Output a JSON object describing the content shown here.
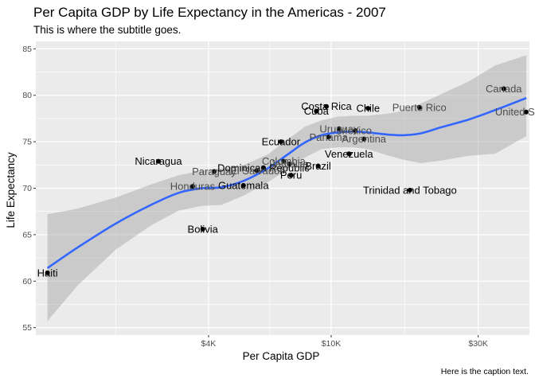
{
  "chart_data": {
    "type": "scatter",
    "title": "Per Capita GDP by Life Expectancy in the Americas - 2007",
    "subtitle": "This is where the subtitle goes.",
    "caption": "Here is the caption text.",
    "xlabel": "Per Capita GDP",
    "ylabel": "Life Expectancy",
    "x_scale": "log10",
    "xlim": [
      1100,
      44000
    ],
    "ylim": [
      54.2,
      85.8
    ],
    "x_ticks": [
      {
        "value": 4000,
        "label": "$4K"
      },
      {
        "value": 10000,
        "label": "$10K"
      },
      {
        "value": 30000,
        "label": "$30K"
      }
    ],
    "x_minor_ticks": [
      2000,
      6325,
      17320
    ],
    "y_ticks": [
      55,
      60,
      65,
      70,
      75,
      80,
      85
    ],
    "grid": true,
    "smooth_color": "#3366ff",
    "points": [
      {
        "country": "Haiti",
        "x": 1200,
        "y": 60.9
      },
      {
        "country": "Nicaragua",
        "x": 2750,
        "y": 72.9
      },
      {
        "country": "Honduras",
        "x": 3550,
        "y": 70.2
      },
      {
        "country": "Bolivia",
        "x": 3830,
        "y": 65.6
      },
      {
        "country": "Paraguay",
        "x": 4170,
        "y": 71.8
      },
      {
        "country": "Guatemala",
        "x": 5190,
        "y": 70.3
      },
      {
        "country": "Dominican Republic",
        "x": 6030,
        "y": 72.2
      },
      {
        "country": "El Salvador",
        "x": 5730,
        "y": 71.9
      },
      {
        "country": "Ecuador",
        "x": 6870,
        "y": 75.0
      },
      {
        "country": "Colombia",
        "x": 7010,
        "y": 72.9
      },
      {
        "country": "Jamaica",
        "x": 7320,
        "y": 72.6
      },
      {
        "country": "Peru",
        "x": 7410,
        "y": 71.4
      },
      {
        "country": "Cuba",
        "x": 8950,
        "y": 78.3
      },
      {
        "country": "Brazil",
        "x": 9070,
        "y": 72.4
      },
      {
        "country": "Costa Rica",
        "x": 9650,
        "y": 78.8
      },
      {
        "country": "Panama",
        "x": 9810,
        "y": 75.5
      },
      {
        "country": "Uruguay",
        "x": 10610,
        "y": 76.4
      },
      {
        "country": "Mexico",
        "x": 11980,
        "y": 76.2
      },
      {
        "country": "Venezuela",
        "x": 11420,
        "y": 73.7
      },
      {
        "country": "Argentina",
        "x": 12780,
        "y": 75.3
      },
      {
        "country": "Chile",
        "x": 13170,
        "y": 78.6
      },
      {
        "country": "Trinidad and Tobago",
        "x": 18010,
        "y": 69.8
      },
      {
        "country": "Puerto Rico",
        "x": 19330,
        "y": 78.7
      },
      {
        "country": "Canada",
        "x": 36320,
        "y": 80.7
      },
      {
        "country": "United States",
        "x": 42950,
        "y": 78.2
      }
    ],
    "smooth_line": [
      {
        "x": 1200,
        "y": 61.4
      },
      {
        "x": 1500,
        "y": 63.6
      },
      {
        "x": 2000,
        "y": 66.2
      },
      {
        "x": 2600,
        "y": 68.2
      },
      {
        "x": 3200,
        "y": 69.5
      },
      {
        "x": 3800,
        "y": 70.0
      },
      {
        "x": 4400,
        "y": 70.1
      },
      {
        "x": 5200,
        "y": 70.8
      },
      {
        "x": 6200,
        "y": 72.1
      },
      {
        "x": 7200,
        "y": 73.6
      },
      {
        "x": 8200,
        "y": 74.9
      },
      {
        "x": 9300,
        "y": 75.7
      },
      {
        "x": 10500,
        "y": 76.0
      },
      {
        "x": 11800,
        "y": 76.1
      },
      {
        "x": 13200,
        "y": 76.0
      },
      {
        "x": 15000,
        "y": 75.8
      },
      {
        "x": 17000,
        "y": 75.7
      },
      {
        "x": 19500,
        "y": 75.9
      },
      {
        "x": 23000,
        "y": 76.6
      },
      {
        "x": 28000,
        "y": 77.4
      },
      {
        "x": 34000,
        "y": 78.4
      },
      {
        "x": 43000,
        "y": 79.7
      }
    ],
    "smooth_band": [
      {
        "x": 1200,
        "lo": 55.7,
        "hi": 67.2
      },
      {
        "x": 1500,
        "lo": 59.5,
        "hi": 67.8
      },
      {
        "x": 2000,
        "lo": 63.4,
        "hi": 69.0
      },
      {
        "x": 2600,
        "lo": 66.0,
        "hi": 70.4
      },
      {
        "x": 3200,
        "lo": 67.6,
        "hi": 71.4
      },
      {
        "x": 3800,
        "lo": 68.1,
        "hi": 71.9
      },
      {
        "x": 4400,
        "lo": 68.2,
        "hi": 72.1
      },
      {
        "x": 5200,
        "lo": 69.2,
        "hi": 72.5
      },
      {
        "x": 6200,
        "lo": 70.6,
        "hi": 73.6
      },
      {
        "x": 7200,
        "lo": 72.0,
        "hi": 75.2
      },
      {
        "x": 8200,
        "lo": 73.3,
        "hi": 76.6
      },
      {
        "x": 9300,
        "lo": 74.2,
        "hi": 77.3
      },
      {
        "x": 10500,
        "lo": 74.4,
        "hi": 77.7
      },
      {
        "x": 11800,
        "lo": 74.4,
        "hi": 77.8
      },
      {
        "x": 13200,
        "lo": 74.2,
        "hi": 77.8
      },
      {
        "x": 15000,
        "lo": 73.6,
        "hi": 78.0
      },
      {
        "x": 17000,
        "lo": 73.1,
        "hi": 78.3
      },
      {
        "x": 19500,
        "lo": 72.7,
        "hi": 79.1
      },
      {
        "x": 23000,
        "lo": 73.0,
        "hi": 80.2
      },
      {
        "x": 28000,
        "lo": 73.5,
        "hi": 81.5
      },
      {
        "x": 34000,
        "lo": 73.7,
        "hi": 83.2
      },
      {
        "x": 43000,
        "lo": 75.6,
        "hi": 84.3
      }
    ]
  }
}
